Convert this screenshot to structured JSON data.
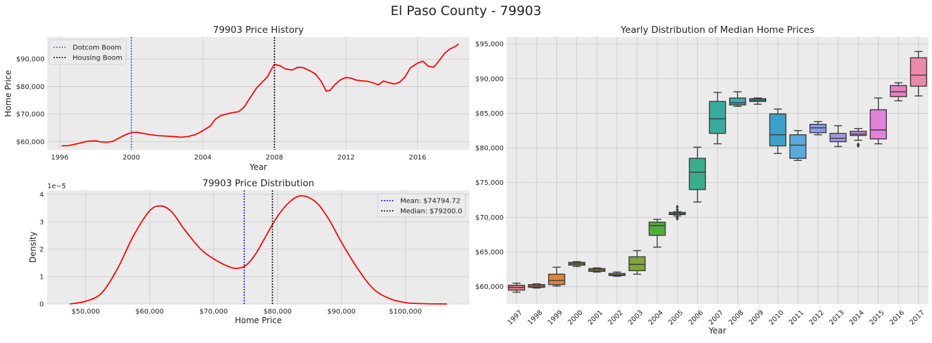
{
  "suptitle": "El Paso County - 79903",
  "colors": {
    "panel_bg": "#ebebeb",
    "grid": "#c8c8c8",
    "line": "#ff0000",
    "dotcom": "#1f77b4",
    "housing": "#000000",
    "mean": "#0000ff",
    "median": "#000000"
  },
  "chart_data": [
    {
      "type": "line",
      "title": "79903 Price History",
      "xlabel": "Year",
      "ylabel": "Home Price",
      "xlim": [
        1995.3,
        2018.9
      ],
      "ylim": [
        57000,
        98000
      ],
      "grid": true,
      "xticks": [
        1996,
        2000,
        2004,
        2008,
        2012,
        2016
      ],
      "xtick_labels": [
        "1996",
        "2000",
        "2004",
        "2008",
        "2012",
        "2016"
      ],
      "yticks": [
        60000,
        70000,
        80000,
        90000
      ],
      "ytick_labels": [
        "$60,000",
        "$70,000",
        "$80,000",
        "$90,000"
      ],
      "series": [
        {
          "x": [
            1996.1,
            1996.5,
            1997.0,
            1997.5,
            1998.0,
            1998.3,
            1998.7,
            1999.0,
            1999.3,
            1999.7,
            2000.0,
            2000.3,
            2000.6,
            2001.0,
            2001.5,
            2002.0,
            2002.5,
            2002.8,
            2003.2,
            2003.6,
            2004.0,
            2004.4,
            2004.7,
            2005.0,
            2005.3,
            2005.6,
            2006.0,
            2006.3,
            2006.6,
            2007.0,
            2007.3,
            2007.6,
            2007.85,
            2008.0,
            2008.3,
            2008.6,
            2009.0,
            2009.3,
            2009.6,
            2010.0,
            2010.3,
            2010.6,
            2010.9,
            2011.1,
            2011.4,
            2011.7,
            2012.0,
            2012.3,
            2012.6,
            2012.9,
            2013.2,
            2013.5,
            2013.8,
            2014.1,
            2014.4,
            2014.7,
            2015.0,
            2015.3,
            2015.6,
            2016.0,
            2016.3,
            2016.6,
            2016.9,
            2017.2,
            2017.5,
            2017.8,
            2018.1,
            2018.3
          ],
          "y": [
            58500,
            58600,
            59300,
            60100,
            60300,
            59900,
            59800,
            60200,
            61300,
            62600,
            63300,
            63400,
            63100,
            62600,
            62200,
            62000,
            61800,
            61600,
            61900,
            62600,
            64000,
            65600,
            68200,
            69500,
            70000,
            70500,
            70900,
            72500,
            75500,
            79500,
            81500,
            83500,
            86500,
            88000,
            87600,
            86400,
            86000,
            87000,
            86900,
            85700,
            84500,
            82000,
            78300,
            78600,
            80800,
            82500,
            83300,
            83000,
            82300,
            82100,
            81900,
            81400,
            80600,
            82000,
            81400,
            80900,
            81600,
            83500,
            86800,
            88500,
            89200,
            87400,
            87000,
            89300,
            92000,
            93600,
            94500,
            95500
          ]
        }
      ],
      "vlines": [
        {
          "x": 2000.0,
          "label": "Dotcom Boom"
        },
        {
          "x": 2008.0,
          "label": "Housing Boom"
        }
      ],
      "legend": "top-left"
    },
    {
      "type": "area",
      "title": "79903 Price Distribution",
      "xlabel": "Home Price",
      "ylabel": "Density",
      "scale_label": "1e−5",
      "xlim": [
        44000,
        110000
      ],
      "ylim": [
        0,
        4.15
      ],
      "grid": true,
      "xticks": [
        50000,
        60000,
        70000,
        80000,
        90000,
        100000
      ],
      "xtick_labels": [
        "$50,000",
        "$60,000",
        "$70,000",
        "$80,000",
        "$90,000",
        "$100,000"
      ],
      "yticks": [
        0,
        1,
        2,
        3,
        4
      ],
      "ytick_labels": [
        "0",
        "1",
        "2",
        "3",
        "4"
      ],
      "series": [
        {
          "x": [
            47500,
            50000,
            52500,
            55000,
            57500,
            60000,
            61800,
            63500,
            65500,
            68000,
            70000,
            72000,
            73500,
            75000,
            76500,
            78000,
            80000,
            82000,
            83800,
            86000,
            88000,
            90000,
            92500,
            95000,
            97500,
            100000,
            103000,
            106500
          ],
          "y": [
            0.0,
            0.1,
            0.4,
            1.3,
            2.5,
            3.4,
            3.58,
            3.35,
            2.7,
            2.0,
            1.65,
            1.4,
            1.3,
            1.4,
            1.8,
            2.4,
            3.2,
            3.75,
            3.95,
            3.72,
            3.1,
            2.25,
            1.3,
            0.55,
            0.2,
            0.05,
            0.01,
            0.0
          ]
        }
      ],
      "vlines": [
        {
          "x": 74794.72,
          "label": "Mean: $74794.72"
        },
        {
          "x": 79200.0,
          "label": "Median: $79200.0"
        }
      ],
      "legend": "top-right"
    },
    {
      "type": "box",
      "title": "Yearly Distribution of Median Home Prices",
      "xlabel": "Year",
      "ylabel": "",
      "ylim": [
        57500,
        96000
      ],
      "grid": true,
      "yticks": [
        60000,
        65000,
        70000,
        75000,
        80000,
        85000,
        90000,
        95000
      ],
      "ytick_labels": [
        "$60,000",
        "$65,000",
        "$70,000",
        "$75,000",
        "$80,000",
        "$85,000",
        "$90,000",
        "$95,000"
      ],
      "categories": [
        "1997",
        "1998",
        "1999",
        "2000",
        "2001",
        "2002",
        "2003",
        "2004",
        "2005",
        "2006",
        "2007",
        "2008",
        "2009",
        "2010",
        "2011",
        "2012",
        "2013",
        "2014",
        "2015",
        "2016",
        "2017"
      ],
      "boxes": [
        {
          "min": 59200,
          "q1": 59500,
          "median": 59900,
          "q3": 60200,
          "max": 60500,
          "fliers": [],
          "color": "#e07b7b"
        },
        {
          "min": 59800,
          "q1": 59900,
          "median": 60100,
          "q3": 60300,
          "max": 60400,
          "fliers": [],
          "color": "#cc8a3c"
        },
        {
          "min": 60100,
          "q1": 60300,
          "median": 60900,
          "q3": 61800,
          "max": 62800,
          "fliers": [],
          "color": "#d9883a"
        },
        {
          "min": 62900,
          "q1": 63100,
          "median": 63300,
          "q3": 63500,
          "max": 63600,
          "fliers": [],
          "color": "#a49b36"
        },
        {
          "min": 62100,
          "q1": 62200,
          "median": 62400,
          "q3": 62600,
          "max": 62700,
          "fliers": [],
          "color": "#a8a133"
        },
        {
          "min": 61500,
          "q1": 61600,
          "median": 61700,
          "q3": 61900,
          "max": 62100,
          "fliers": [],
          "color": "#98a43a"
        },
        {
          "min": 61800,
          "q1": 62300,
          "median": 63200,
          "q3": 64300,
          "max": 65200,
          "fliers": [],
          "color": "#82a63a"
        },
        {
          "min": 65700,
          "q1": 67400,
          "median": 68800,
          "q3": 69300,
          "max": 69700,
          "fliers": [],
          "color": "#4fad3a"
        },
        {
          "min": 70200,
          "q1": 70400,
          "median": 70500,
          "q3": 70700,
          "max": 70800,
          "fliers": [
            69800,
            70000,
            71100,
            71500
          ],
          "color": "#3aad6b"
        },
        {
          "min": 72200,
          "q1": 74000,
          "median": 76500,
          "q3": 78500,
          "max": 80100,
          "fliers": [],
          "color": "#3aad8c"
        },
        {
          "min": 80600,
          "q1": 82100,
          "median": 84200,
          "q3": 86700,
          "max": 88000,
          "fliers": [],
          "color": "#36ad9c"
        },
        {
          "min": 86000,
          "q1": 86200,
          "median": 86500,
          "q3": 87200,
          "max": 88100,
          "fliers": [],
          "color": "#37aaa8"
        },
        {
          "min": 86300,
          "q1": 86700,
          "median": 86900,
          "q3": 87100,
          "max": 87200,
          "fliers": [],
          "color": "#38a8b5"
        },
        {
          "min": 79200,
          "q1": 80300,
          "median": 81900,
          "q3": 84900,
          "max": 85600,
          "fliers": [],
          "color": "#3aa2c8"
        },
        {
          "min": 78200,
          "q1": 78500,
          "median": 80400,
          "q3": 81900,
          "max": 82500,
          "fliers": [],
          "color": "#5aaadc"
        },
        {
          "min": 81900,
          "q1": 82200,
          "median": 82900,
          "q3": 83400,
          "max": 83800,
          "fliers": [],
          "color": "#8a9de6"
        },
        {
          "min": 80200,
          "q1": 80900,
          "median": 81400,
          "q3": 82100,
          "max": 83200,
          "fliers": [],
          "color": "#a596e0"
        },
        {
          "min": 81100,
          "q1": 81800,
          "median": 82000,
          "q3": 82400,
          "max": 82800,
          "fliers": [
            80300,
            80500
          ],
          "color": "#c08ad9"
        },
        {
          "min": 80600,
          "q1": 81300,
          "median": 82600,
          "q3": 85500,
          "max": 87200,
          "fliers": [],
          "color": "#e283d9"
        },
        {
          "min": 86800,
          "q1": 87400,
          "median": 88100,
          "q3": 89000,
          "max": 89400,
          "fliers": [],
          "color": "#e87fbf"
        },
        {
          "min": 87500,
          "q1": 88900,
          "median": 90500,
          "q3": 93000,
          "max": 93900,
          "fliers": [],
          "color": "#ea8aa8"
        }
      ]
    }
  ]
}
